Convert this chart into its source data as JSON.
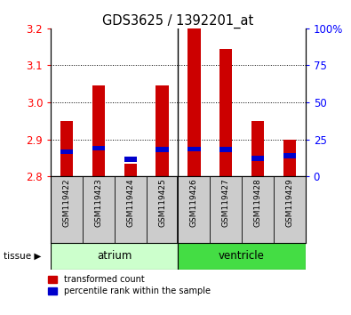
{
  "title": "GDS3625 / 1392201_at",
  "samples": [
    "GSM119422",
    "GSM119423",
    "GSM119424",
    "GSM119425",
    "GSM119426",
    "GSM119427",
    "GSM119428",
    "GSM119429"
  ],
  "red_values": [
    2.95,
    3.045,
    2.835,
    3.045,
    3.2,
    3.145,
    2.95,
    2.9
  ],
  "blue_values": [
    2.866,
    2.876,
    2.846,
    2.873,
    2.874,
    2.873,
    2.849,
    2.856
  ],
  "ylim_left": [
    2.8,
    3.2
  ],
  "ylim_right": [
    0,
    100
  ],
  "yticks_left": [
    2.8,
    2.9,
    3.0,
    3.1,
    3.2
  ],
  "yticks_right": [
    0,
    25,
    50,
    75,
    100
  ],
  "ytick_labels_right": [
    "0",
    "25",
    "50",
    "75",
    "100%"
  ],
  "grid_lines": [
    2.9,
    3.0,
    3.1
  ],
  "groups": [
    {
      "label": "atrium",
      "start": 0,
      "end": 4,
      "color": "#ccffcc"
    },
    {
      "label": "ventricle",
      "start": 4,
      "end": 8,
      "color": "#44dd44"
    }
  ],
  "bar_bottom": 2.8,
  "bar_width": 0.4,
  "blue_bar_height": 0.013,
  "red_color": "#cc0000",
  "blue_color": "#0000cc",
  "background_color": "#ffffff",
  "sample_bg_color": "#cccccc",
  "legend_labels": [
    "transformed count",
    "percentile rank within the sample"
  ]
}
